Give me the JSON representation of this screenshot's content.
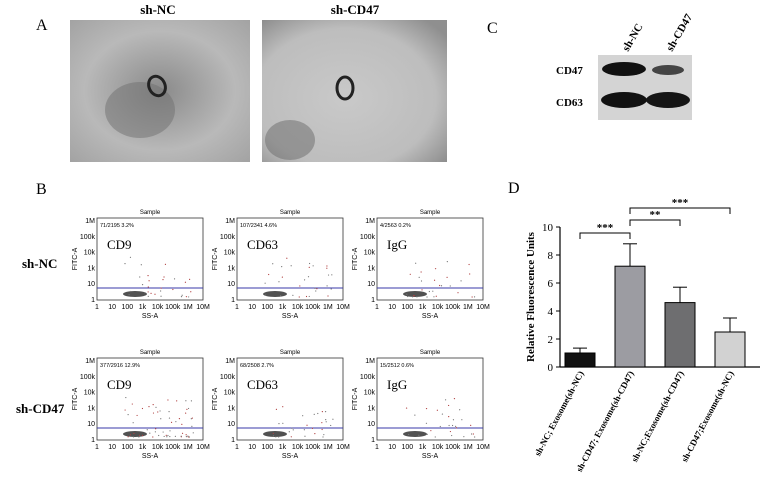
{
  "panel_a": {
    "label": "A",
    "image_labels": [
      "sh-NC",
      "sh-CD47"
    ]
  },
  "panel_b": {
    "label": "B",
    "row_labels": [
      "sh-NC",
      "sh-CD47"
    ],
    "plot_title": "Sample",
    "x_axis_label": "SS-A",
    "y_axis_label": "FITC-A",
    "x_tick_labels": [
      "1",
      "10",
      "100",
      "1k",
      "10k",
      "100k",
      "1M",
      "10M"
    ],
    "y_tick_labels": [
      "1M",
      "100k",
      "10k",
      "1k",
      "10",
      "1"
    ],
    "plots": [
      {
        "marker": "CD9",
        "gate_stat": "71/2195  3.2%"
      },
      {
        "marker": "CD63",
        "gate_stat": "107/2341  4.6%"
      },
      {
        "marker": "IgG",
        "gate_stat": "4/2563  0.2%"
      },
      {
        "marker": "CD9",
        "gate_stat": "377/2916  12.9%"
      },
      {
        "marker": "CD63",
        "gate_stat": "68/2508  2.7%"
      },
      {
        "marker": "IgG",
        "gate_stat": "15/2512  0.6%"
      }
    ]
  },
  "panel_c": {
    "label": "C",
    "lane_labels": [
      "sh-NC",
      "sh-CD47"
    ],
    "row_labels": [
      "CD47",
      "CD63"
    ]
  },
  "chart_data": {
    "type": "bar",
    "panel_label": "D",
    "y_axis_label": "Relative Fluorescence Units",
    "categories": [
      "sh-NC; Exosome(sh-NC)",
      "sh-CD47; Exosome(sh-CD47)",
      "sh-NC;Exosome(sh-CD47)",
      "sh-CD47;Exosome(sh-NC)"
    ],
    "values": [
      1.0,
      7.2,
      4.6,
      2.5
    ],
    "errors": [
      0.35,
      1.6,
      1.1,
      1.0
    ],
    "colors": [
      "#111111",
      "#9c9ca2",
      "#6e6e70",
      "#d2d2d2"
    ],
    "ylim": [
      0,
      10
    ],
    "yticks": [
      0,
      2,
      4,
      6,
      8,
      10
    ],
    "annotations": [
      "***",
      "**",
      "***"
    ]
  }
}
